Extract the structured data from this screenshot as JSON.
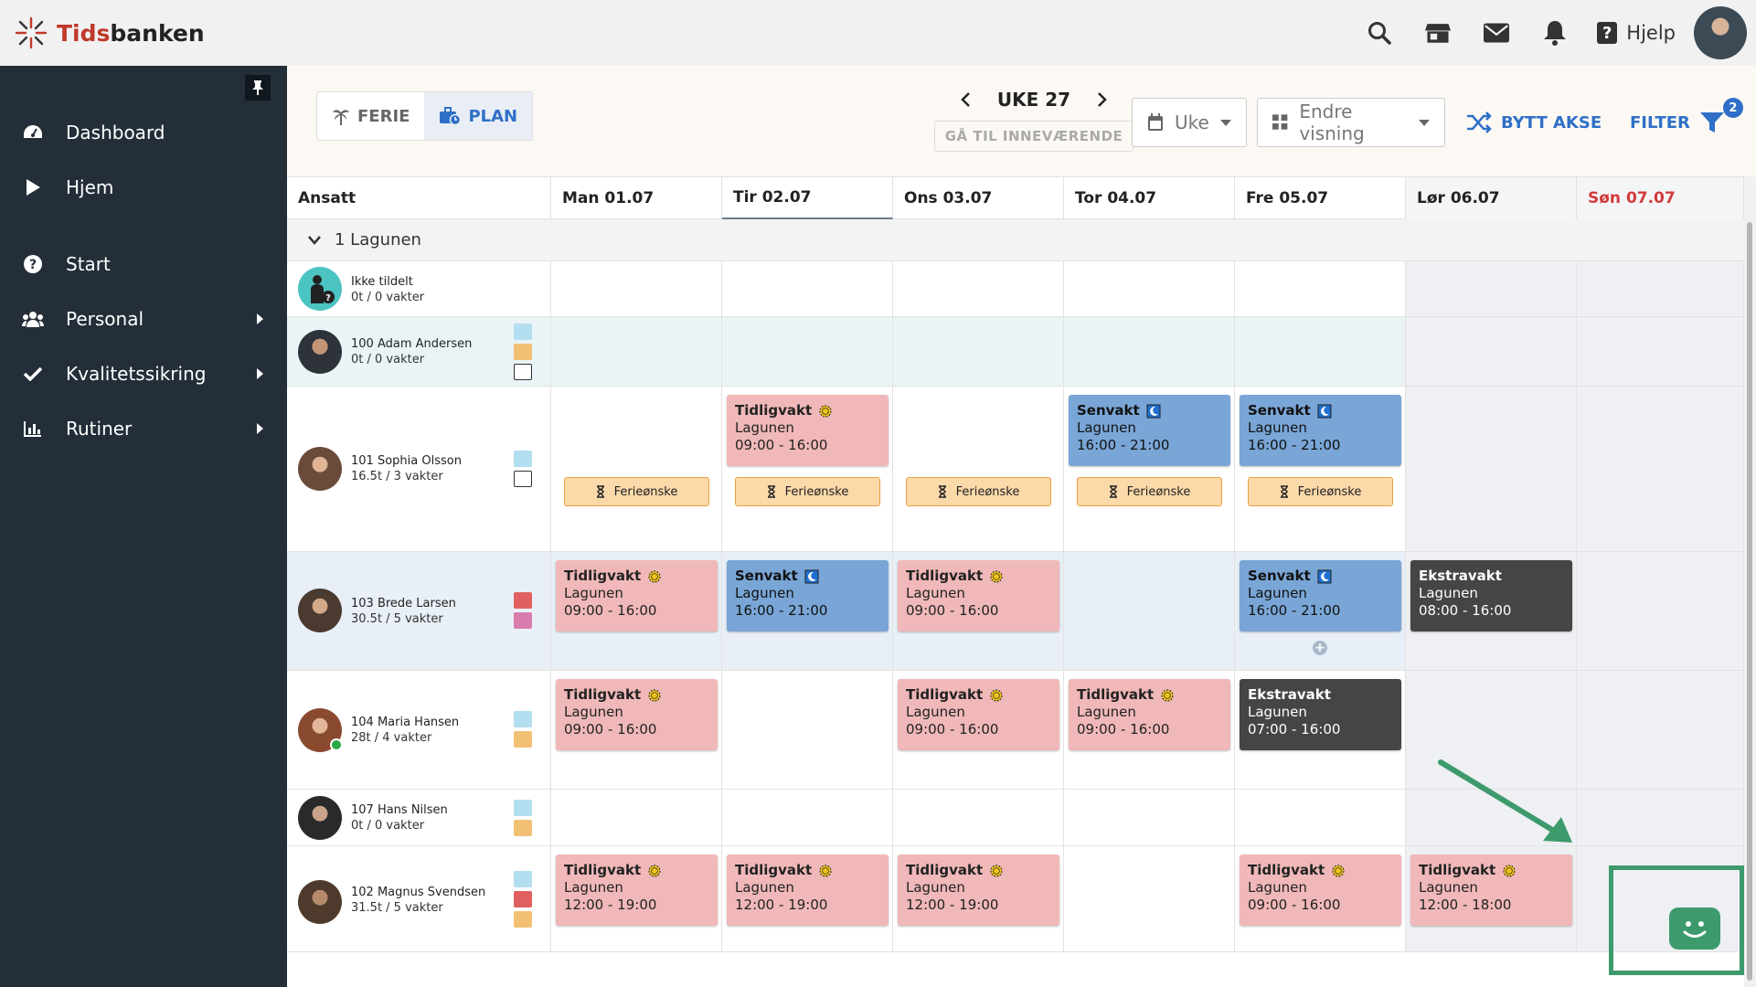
{
  "app": {
    "brand_prefix": "Tids",
    "brand_suffix": "banken",
    "help_label": "Hjelp"
  },
  "top_icons": [
    "search-icon",
    "store-icon",
    "mail-icon",
    "bell-icon"
  ],
  "sidebar": {
    "items": [
      {
        "label": "Dashboard",
        "icon": "dashboard-icon",
        "submenu": false
      },
      {
        "label": "Hjem",
        "icon": "play-icon",
        "submenu": false
      },
      {
        "label": "Start",
        "icon": "question-icon",
        "submenu": false
      },
      {
        "label": "Personal",
        "icon": "users-icon",
        "submenu": true
      },
      {
        "label": "Kvalitetssikring",
        "icon": "check-icon",
        "submenu": true
      },
      {
        "label": "Rutiner",
        "icon": "chart-icon",
        "submenu": true
      }
    ]
  },
  "toolbar": {
    "ferie_label": "FERIE",
    "plan_label": "PLAN",
    "week_label": "UKE 27",
    "goto_label": "GÅ TIL INNEVÆRENDE",
    "period_select": "Uke",
    "view_select": "Endre visning",
    "swap_axis_label": "BYTT AKSE",
    "filter_label": "FILTER",
    "filter_count": "2"
  },
  "schedule": {
    "employee_header": "Ansatt",
    "days": [
      "Man 01.07",
      "Tir 02.07",
      "Ons 03.07",
      "Tor 04.07",
      "Fre 05.07",
      "Lør 06.07",
      "Søn 07.07"
    ],
    "group_name": "1 Lagunen",
    "employees": [
      {
        "name": "Ikke tildelt",
        "hours": "0t / 0 vakter"
      },
      {
        "name": "100 Adam Andersen",
        "hours": "0t / 0 vakter"
      },
      {
        "name": "101 Sophia Olsson",
        "hours": "16.5t / 3 vakter"
      },
      {
        "name": "103 Brede Larsen",
        "hours": "30.5t / 5 vakter"
      },
      {
        "name": "104 Maria Hansen",
        "hours": "28t / 4 vakter"
      },
      {
        "name": "107 Hans Nilsen",
        "hours": "0t / 0 vakter"
      },
      {
        "name": "102 Magnus Svendsen",
        "hours": "31.5t / 5 vakter"
      }
    ],
    "location": "Lagunen",
    "wish_label": "Ferieønske",
    "shift_names": {
      "early": "Tidligvakt",
      "late": "Senvakt",
      "extra": "Ekstravakt"
    },
    "times": {
      "t0916": "09:00 - 16:00",
      "t1621": "16:00 - 21:00",
      "t0816": "08:00 - 16:00",
      "t0716": "07:00 - 16:00",
      "t1219": "12:00 - 19:00",
      "t1218": "12:00 - 18:00"
    }
  },
  "colors": {
    "early_shift": "#f0b8b8",
    "late_shift": "#79a6d6",
    "extra_shift": "#454545",
    "wish": "#fbd9a9",
    "accent_blue": "#2f6fc7",
    "sidebar": "#232e39",
    "annotation_green": "#3d9a6c"
  }
}
